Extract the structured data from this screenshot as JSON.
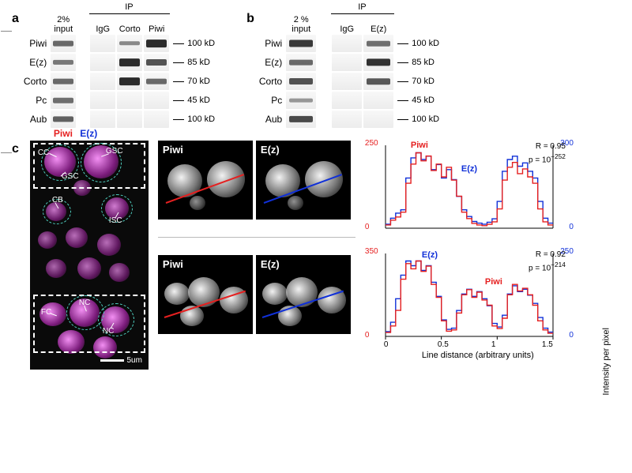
{
  "panel_a": {
    "label": "a",
    "input_header": "2%\ninput",
    "ip_header": "IP",
    "ip_lanes": [
      "IgG",
      "Corto",
      "Piwi"
    ],
    "rows": [
      "Piwi",
      "E(z)",
      "Corto",
      "Pc",
      "Aub"
    ],
    "mw": [
      "100 kD",
      "85 kD",
      "70 kD",
      "45 kD",
      "100 kD"
    ],
    "lane_width": 34,
    "gap_width": 16,
    "bands": {
      "input": [
        0.55,
        0.45,
        0.55,
        0.5,
        0.6
      ],
      "IgG": [
        0.0,
        0.0,
        0.0,
        0.0,
        0.0
      ],
      "Corto": [
        0.35,
        0.95,
        0.95,
        0.0,
        0.0
      ],
      "Piwi": [
        0.95,
        0.7,
        0.55,
        0.0,
        0.0
      ]
    }
  },
  "panel_b": {
    "label": "b",
    "input_header": "2 %\ninput",
    "ip_header": "IP",
    "ip_lanes": [
      "IgG",
      "E(z)"
    ],
    "rows": [
      "Piwi",
      "E(z)",
      "Corto",
      "Pc",
      "Aub"
    ],
    "mw": [
      "100 kD",
      "85 kD",
      "70 kD",
      "45 kD",
      "100 kD"
    ],
    "lane_width": 40,
    "gap_width": 18,
    "bands": {
      "input": [
        0.85,
        0.55,
        0.7,
        0.25,
        0.75
      ],
      "IgG": [
        0.0,
        0.0,
        0.0,
        0.0,
        0.0
      ],
      "E(z)": [
        0.5,
        0.9,
        0.65,
        0.0,
        0.0
      ]
    }
  },
  "panel_c": {
    "label": "c",
    "title_piwi": "Piwi",
    "title_ez": "E(z)",
    "piwi_color": "#e52020",
    "ez_color": "#1030d8",
    "annotations": [
      "CC",
      "GSC",
      "GSC",
      "CB",
      "ISC",
      "FC",
      "NC",
      "NC"
    ],
    "scale": "5um",
    "mono_labels": [
      "Piwi",
      "E(z)"
    ],
    "y_axis_title": "Intensity per pixel",
    "x_axis_title": "Line distance (arbitrary units)",
    "chart1": {
      "left_max": 250,
      "right_max": 300,
      "R": "R = 0.95",
      "p": "p = 10",
      "p_exp": "−252",
      "piwi_series": [
        10,
        25,
        35,
        50,
        140,
        200,
        235,
        210,
        225,
        180,
        200,
        160,
        190,
        150,
        100,
        50,
        30,
        15,
        10,
        8,
        12,
        20,
        60,
        150,
        190,
        205,
        170,
        185,
        160,
        140,
        60,
        20,
        10
      ],
      "ez_series": [
        12,
        30,
        45,
        55,
        150,
        210,
        225,
        205,
        215,
        175,
        190,
        150,
        175,
        145,
        95,
        55,
        35,
        20,
        15,
        12,
        18,
        28,
        80,
        170,
        205,
        215,
        185,
        195,
        170,
        150,
        80,
        30,
        15
      ],
      "xticks": [
        "0",
        "0.5",
        "1",
        "1.5"
      ],
      "series_label_1": "Piwi",
      "series_label_2": "E(z)"
    },
    "chart2": {
      "left_max": 350,
      "right_max": 250,
      "R": "R = 0.92",
      "p": "p = 10",
      "p_exp": "−214",
      "piwi_series": [
        15,
        40,
        100,
        220,
        280,
        260,
        290,
        250,
        270,
        200,
        150,
        60,
        20,
        25,
        90,
        160,
        180,
        150,
        170,
        140,
        120,
        40,
        30,
        70,
        160,
        200,
        175,
        185,
        160,
        120,
        60,
        25,
        12
      ],
      "ez_series": [
        20,
        60,
        160,
        260,
        320,
        300,
        320,
        280,
        300,
        230,
        170,
        70,
        30,
        35,
        110,
        180,
        200,
        170,
        190,
        160,
        130,
        55,
        40,
        90,
        180,
        215,
        190,
        200,
        175,
        140,
        80,
        35,
        18
      ],
      "xticks": [
        "0",
        "0.5",
        "1",
        "1.5"
      ],
      "series_label_1": "E(z)",
      "series_label_2": "Piwi"
    }
  },
  "colors": {
    "piwi": "#e52020",
    "ez": "#1030d8",
    "background": "#ffffff",
    "band": "#1a1a1a"
  }
}
